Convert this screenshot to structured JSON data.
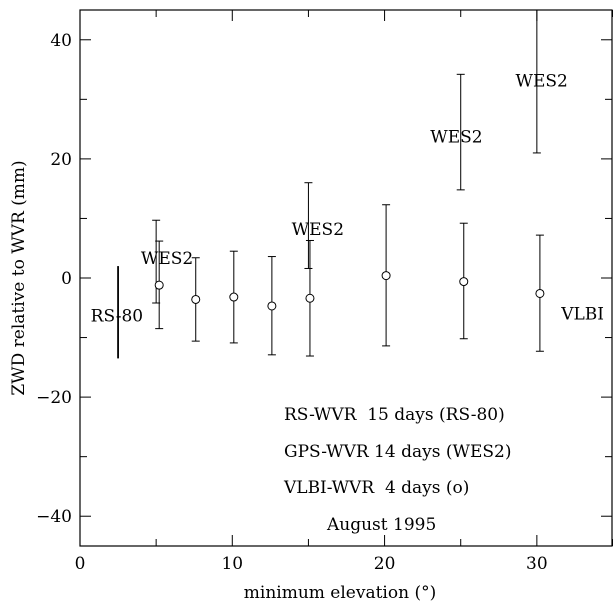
{
  "chart_data": {
    "type": "scatter",
    "title": "",
    "xlabel": "minimum elevation (°)",
    "ylabel": "ZWD relative to WVR (mm)",
    "xlim": [
      0,
      35
    ],
    "ylim": [
      -45,
      45
    ],
    "xticks": [
      0,
      10,
      20,
      30
    ],
    "yticks": [
      -40,
      -20,
      0,
      20,
      40
    ],
    "grid": false,
    "series": [
      {
        "name": "RS-80",
        "marker": "none",
        "points": [
          {
            "x": 2.5,
            "y": -5.7,
            "low": -13.5,
            "high": 2.0
          }
        ]
      },
      {
        "name": "WES2",
        "marker": "none",
        "points": [
          {
            "x": 5.0,
            "y": 2.7,
            "low": -4.2,
            "high": 9.7
          },
          {
            "x": 15.0,
            "y": 8.8,
            "low": 1.6,
            "high": 16.0
          },
          {
            "x": 25.0,
            "y": 24.5,
            "low": 14.8,
            "high": 34.2
          },
          {
            "x": 30.0,
            "y": 33.0,
            "low": 21.0,
            "high": 45.0
          }
        ]
      },
      {
        "name": "VLBI",
        "marker": "circle",
        "points": [
          {
            "x": 5.2,
            "y": -1.2,
            "low": -8.5,
            "high": 6.2
          },
          {
            "x": 7.6,
            "y": -3.6,
            "low": -10.6,
            "high": 3.4
          },
          {
            "x": 10.1,
            "y": -3.2,
            "low": -10.9,
            "high": 4.5
          },
          {
            "x": 12.6,
            "y": -4.7,
            "low": -12.9,
            "high": 3.6
          },
          {
            "x": 15.1,
            "y": -3.4,
            "low": -13.1,
            "high": 6.3
          },
          {
            "x": 20.1,
            "y": 0.4,
            "low": -11.4,
            "high": 12.3
          },
          {
            "x": 25.2,
            "y": -0.6,
            "low": -10.2,
            "high": 9.2
          },
          {
            "x": 30.2,
            "y": -2.6,
            "low": -12.3,
            "high": 7.2
          }
        ]
      }
    ],
    "annotations": [
      {
        "text": "RS-80",
        "x": 0.7,
        "y": -6.3
      },
      {
        "text": "WES2",
        "x": 4.0,
        "y": 3.4
      },
      {
        "text": "WES2",
        "x": 13.9,
        "y": 8.2
      },
      {
        "text": "WES2",
        "x": 23.0,
        "y": 23.8
      },
      {
        "text": "WES2",
        "x": 28.6,
        "y": 33.2
      },
      {
        "text": "VLBI",
        "x": 31.6,
        "y": -6.0
      }
    ],
    "legend_position": "bottom-right",
    "legend": [
      "RS-WVR  15 days (RS-80)",
      "GPS-WVR 14 days (WES2)",
      "VLBI-WVR  4 days (o)",
      "August 1995"
    ]
  }
}
